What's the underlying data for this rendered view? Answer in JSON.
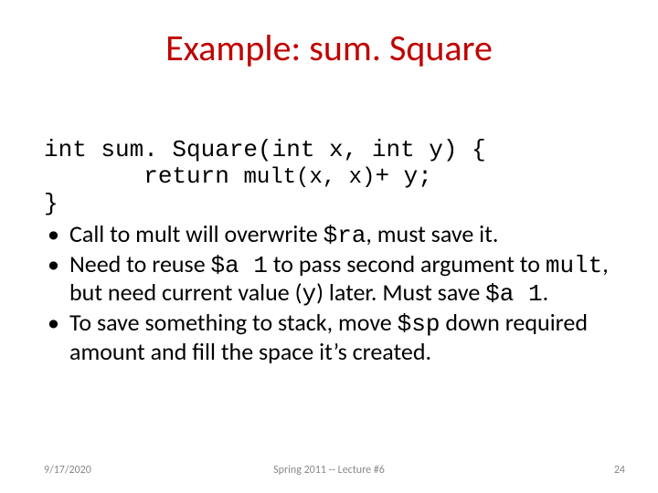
{
  "title": "Example: sum. Square",
  "code": {
    "line1": "int sum. Square(int x, int y) {",
    "line2_indent": "       ",
    "line2a": "return ",
    "line2b": "mult(x, x)",
    "line2c": "+ y;",
    "line3": "}"
  },
  "bullets": [
    {
      "pre": "Call to mult will overwrite ",
      "m1": "$ra",
      "post": ", must save it."
    },
    {
      "pre": "Need to reuse ",
      "m1": "$a 1",
      "mid1": " to pass second argument to ",
      "m2": "mult",
      "mid2": ", but need current value (",
      "m3": "y",
      "mid3": ") later. Must save ",
      "m4": "$a 1",
      "post": "."
    },
    {
      "pre": "To save something to stack, move ",
      "m1": "$sp",
      "post": " down required amount and fill the space it’s created."
    }
  ],
  "footer": {
    "date": "9/17/2020",
    "center": "Spring 2011 -- Lecture #6",
    "page": "24"
  },
  "colors": {
    "title": "#c00000",
    "text": "#000000",
    "footer": "#888888",
    "background": "#ffffff"
  },
  "fonts": {
    "title_size_pt": 40,
    "body_size_pt": 26,
    "footer_size_pt": 12,
    "body_family": "Calibri",
    "mono_family": "Courier New"
  }
}
